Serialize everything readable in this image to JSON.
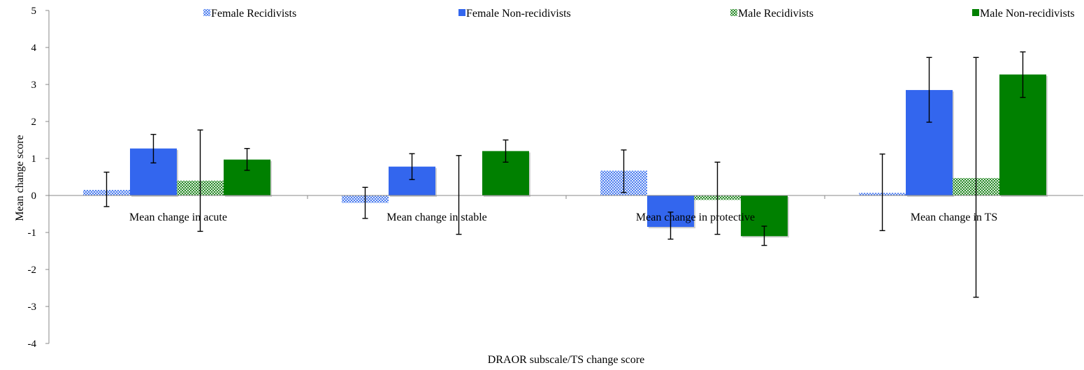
{
  "chart_data": {
    "type": "bar",
    "title": "",
    "xlabel": "DRAOR subscale/TS change score",
    "ylabel": "Mean change score",
    "ylim": [
      -4,
      5
    ],
    "yticks": [
      -4,
      -3,
      -2,
      -1,
      0,
      1,
      2,
      3,
      4,
      5
    ],
    "grid": false,
    "legend_position": "top",
    "categories": [
      "Mean change in acute",
      "Mean change in stable",
      "Mean change in protective",
      "Mean change in TS"
    ],
    "series": [
      {
        "name": "Female Recidivists",
        "color": "#4f7ff0",
        "pattern": "checker",
        "values": [
          0.15,
          -0.2,
          0.67,
          0.07
        ],
        "error_low": [
          -0.3,
          -0.62,
          0.08,
          -0.95
        ],
        "error_high": [
          0.63,
          0.22,
          1.23,
          1.12
        ]
      },
      {
        "name": "Female Non-recidivists",
        "color": "#3366ee",
        "pattern": "solid",
        "values": [
          1.27,
          0.78,
          -0.85,
          2.85
        ],
        "error_low": [
          0.88,
          0.43,
          -1.18,
          1.98
        ],
        "error_high": [
          1.65,
          1.13,
          -0.45,
          3.73
        ]
      },
      {
        "name": "Male Recidivists",
        "color": "#2a8a2a",
        "pattern": "checker",
        "values": [
          0.4,
          0.0,
          -0.12,
          0.47
        ],
        "error_low": [
          -0.97,
          -1.05,
          -1.05,
          -2.75
        ],
        "error_high": [
          1.77,
          1.08,
          0.9,
          3.73
        ]
      },
      {
        "name": "Male Non-recidivists",
        "color": "#008000",
        "pattern": "solid",
        "values": [
          0.97,
          1.2,
          -1.1,
          3.27
        ],
        "error_low": [
          0.68,
          0.9,
          -1.35,
          2.65
        ],
        "error_high": [
          1.27,
          1.5,
          -0.83,
          3.88
        ]
      }
    ]
  }
}
